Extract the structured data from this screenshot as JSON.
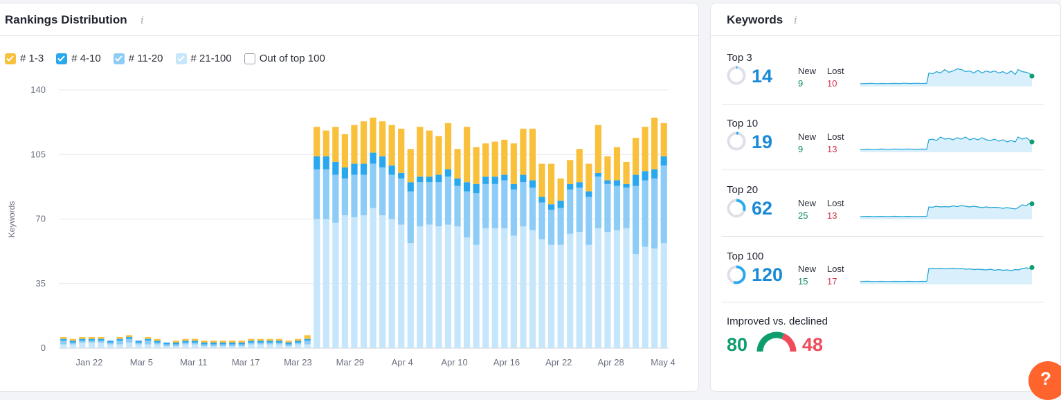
{
  "rankings": {
    "title": "Rankings Distribution",
    "info_icon": "i",
    "legend": [
      {
        "label": "# 1-3",
        "color": "#f9c03c",
        "checked": true
      },
      {
        "label": "# 4-10",
        "color": "#2aa8ee",
        "checked": true
      },
      {
        "label": "# 11-20",
        "color": "#8dccf6",
        "checked": true
      },
      {
        "label": "# 21-100",
        "color": "#c6e6fb",
        "checked": true
      },
      {
        "label": "Out of top 100",
        "color": "#ffffff",
        "checked": false
      }
    ]
  },
  "chart_data": {
    "type": "bar",
    "stacked": true,
    "ylabel": "Keywords",
    "ylim": [
      0,
      140
    ],
    "yticks": [
      0,
      35,
      70,
      105,
      140
    ],
    "xtick_labels": [
      "Jan 22",
      "Mar 5",
      "Mar 11",
      "Mar 17",
      "Mar 23",
      "Mar 29",
      "Apr 4",
      "Apr 10",
      "Apr 16",
      "Apr 22",
      "Apr 28",
      "May 4"
    ],
    "grid": true,
    "legend_position": "top-left",
    "series": [
      {
        "name": "# 21-100",
        "color": "#c6e6fb",
        "values": [
          2,
          2,
          3,
          3,
          3,
          2,
          2,
          3,
          2,
          2,
          2,
          1,
          1,
          2,
          2,
          1,
          1,
          1,
          1,
          1,
          2,
          2,
          2,
          2,
          1,
          2,
          2,
          70,
          70,
          68,
          72,
          71,
          72,
          76,
          72,
          70,
          67,
          57,
          66,
          67,
          66,
          67,
          66,
          60,
          56,
          65,
          65,
          65,
          61,
          66,
          64,
          59,
          56,
          56,
          62,
          63,
          56,
          65,
          63,
          64,
          65,
          51,
          55,
          54,
          57
        ]
      },
      {
        "name": "# 11-20",
        "color": "#8dccf6",
        "values": [
          2,
          1,
          1,
          1,
          1,
          1,
          2,
          2,
          1,
          2,
          1,
          1,
          1,
          1,
          1,
          1,
          1,
          1,
          1,
          1,
          1,
          1,
          1,
          1,
          1,
          1,
          2,
          27,
          27,
          26,
          20,
          23,
          22,
          24,
          26,
          24,
          25,
          28,
          24,
          23,
          24,
          26,
          22,
          25,
          28,
          24,
          24,
          26,
          25,
          24,
          23,
          20,
          19,
          20,
          24,
          24,
          26,
          28,
          26,
          24,
          22,
          37,
          36,
          38,
          42
        ]
      },
      {
        "name": "# 4-10",
        "color": "#2aa8ee",
        "values": [
          1,
          1,
          1,
          1,
          1,
          1,
          1,
          1,
          1,
          1,
          1,
          1,
          1,
          1,
          1,
          1,
          1,
          1,
          1,
          1,
          1,
          1,
          1,
          1,
          1,
          1,
          1,
          7,
          7,
          7,
          6,
          6,
          6,
          6,
          6,
          5,
          3,
          5,
          3,
          3,
          4,
          4,
          4,
          5,
          5,
          4,
          4,
          3,
          3,
          4,
          4,
          3,
          3,
          4,
          3,
          3,
          3,
          2,
          2,
          3,
          2,
          6,
          5,
          5,
          5
        ]
      },
      {
        "name": "# 1-3",
        "color": "#f9c03c",
        "values": [
          1,
          1,
          1,
          1,
          1,
          0,
          1,
          1,
          0,
          1,
          1,
          0,
          1,
          1,
          1,
          1,
          1,
          1,
          1,
          1,
          1,
          1,
          1,
          1,
          1,
          1,
          2,
          16,
          14,
          19,
          18,
          21,
          23,
          19,
          19,
          22,
          24,
          18,
          27,
          25,
          21,
          25,
          16,
          30,
          20,
          18,
          19,
          19,
          22,
          25,
          28,
          18,
          22,
          12,
          13,
          18,
          15,
          26,
          13,
          18,
          12,
          20,
          24,
          28,
          18
        ]
      }
    ]
  },
  "keywords": {
    "title": "Keywords",
    "info_icon": "i",
    "new_label": "New",
    "lost_label": "Lost",
    "rows": [
      {
        "label": "Top 3",
        "value": "14",
        "new": "9",
        "lost": "10",
        "fill_fraction": 0.02
      },
      {
        "label": "Top 10",
        "value": "19",
        "new": "9",
        "lost": "13",
        "fill_fraction": 0.04
      },
      {
        "label": "Top 20",
        "value": "62",
        "new": "25",
        "lost": "13",
        "fill_fraction": 0.3
      },
      {
        "label": "Top 100",
        "value": "120",
        "new": "15",
        "lost": "17",
        "fill_fraction": 0.55
      }
    ],
    "improved": {
      "label": "Improved vs. declined",
      "improved_value": "80",
      "declined_value": "48",
      "improved_color": "#0f9d6e",
      "declined_color": "#ef4b5a",
      "improved_fraction": 0.625
    }
  },
  "corner_badge": {
    "icon": "chat-icon",
    "color": "#ff642d",
    "label": "?"
  }
}
